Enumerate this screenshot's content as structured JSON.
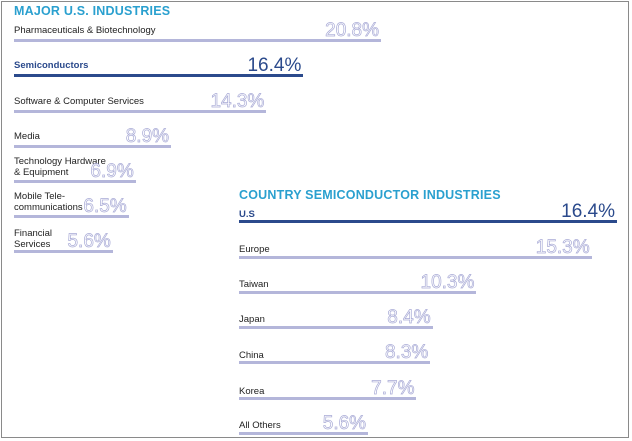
{
  "chart_data": [
    {
      "type": "bar",
      "orientation": "horizontal",
      "title": "MAJOR U.S. INDUSTRIES",
      "categories": [
        "Pharmaceuticals & Biotechnology",
        "Semiconductors",
        "Software & Computer Services",
        "Media",
        "Technology Hardware\n& Equipment",
        "Mobile Tele-\ncommunications",
        "Financial\nServices"
      ],
      "values": [
        20.8,
        16.4,
        14.3,
        8.9,
        6.9,
        6.5,
        5.6
      ],
      "value_labels": [
        "20.8%",
        "16.4%",
        "14.3%",
        "8.9%",
        "6.9%",
        "6.5%",
        "5.6%"
      ],
      "highlight": "Semiconductors",
      "unit": "%"
    },
    {
      "type": "bar",
      "orientation": "horizontal",
      "title": "COUNTRY SEMICONDUCTOR INDUSTRIES",
      "categories": [
        "U.S",
        "Europe",
        "Taiwan",
        "Japan",
        "China",
        "Korea",
        "All Others"
      ],
      "values": [
        16.4,
        15.3,
        10.3,
        8.4,
        8.3,
        7.7,
        5.6
      ],
      "value_labels": [
        "16.4%",
        "15.3%",
        "10.3%",
        "8.4%",
        "8.3%",
        "7.7%",
        "5.6%"
      ],
      "highlight": "U.S",
      "unit": "%"
    }
  ],
  "colors": {
    "title": "#2aa0cf",
    "highlight": "#2b4a8c",
    "bar": "#b4b6da",
    "value_outline": "#a9abd6"
  }
}
